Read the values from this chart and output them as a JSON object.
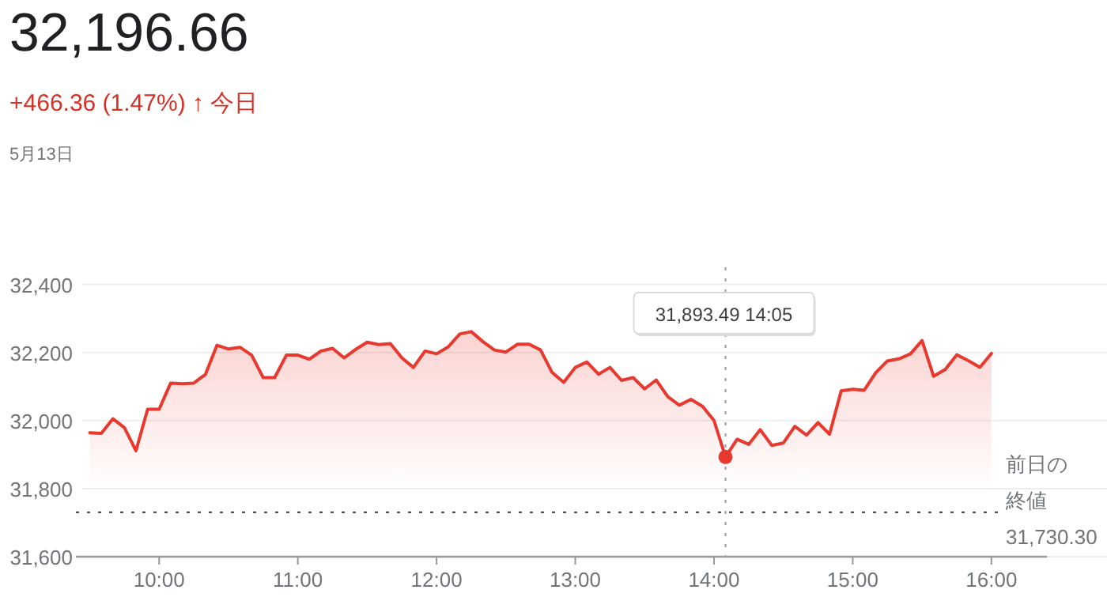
{
  "chart_data": {
    "type": "area",
    "title": "32,196.66",
    "subtitle": "+466.36 (1.47%) ↑ 今日",
    "annotations": [
      "5月13日",
      "31,893.49 14:05"
    ],
    "x": [
      9.5,
      9.583,
      9.667,
      9.75,
      9.833,
      9.917,
      10,
      10.083,
      10.167,
      10.25,
      10.333,
      10.417,
      10.5,
      10.583,
      10.667,
      10.75,
      10.833,
      10.917,
      11,
      11.083,
      11.167,
      11.25,
      11.333,
      11.417,
      11.5,
      11.583,
      11.667,
      11.75,
      11.833,
      11.917,
      12,
      12.083,
      12.167,
      12.25,
      12.333,
      12.417,
      12.5,
      12.583,
      12.667,
      12.75,
      12.833,
      12.917,
      13,
      13.083,
      13.167,
      13.25,
      13.333,
      13.417,
      13.5,
      13.583,
      13.667,
      13.75,
      13.833,
      13.917,
      14,
      14.083,
      14.167,
      14.25,
      14.333,
      14.417,
      14.5,
      14.583,
      14.667,
      14.75,
      14.833,
      14.917,
      15,
      15.083,
      15.167,
      15.25,
      15.333,
      15.417,
      15.5,
      15.583,
      15.667,
      15.75,
      15.833,
      15.917,
      16
    ],
    "series": [
      {
        "color": "#e8392f",
        "values": [
          31964,
          31962,
          32005,
          31979,
          31911,
          32033,
          32033,
          32110,
          32108,
          32110,
          32135,
          32221,
          32210,
          32215,
          32192,
          32126,
          32126,
          32192,
          32192,
          32180,
          32204,
          32212,
          32184,
          32209,
          32230,
          32223,
          32226,
          32184,
          32156,
          32204,
          32196,
          32216,
          32254,
          32261,
          32232,
          32207,
          32201,
          32224,
          32224,
          32207,
          32141,
          32112,
          32156,
          32172,
          32136,
          32156,
          32118,
          32126,
          32093,
          32119,
          32070,
          32045,
          32062,
          32042,
          32000,
          31893,
          31945,
          31930,
          31973,
          31927,
          31934,
          31983,
          31957,
          31994,
          31960,
          32087,
          32092,
          32089,
          32141,
          32175,
          32181,
          32196,
          32235,
          32130,
          32150,
          32193,
          32176,
          32156,
          32197
        ]
      }
    ],
    "xlim": [
      9.4,
      16.4
    ],
    "xticks": [
      {
        "value": 10,
        "label": "10:00"
      },
      {
        "value": 11,
        "label": "11:00"
      },
      {
        "value": 12,
        "label": "12:00"
      },
      {
        "value": 13,
        "label": "13:00"
      },
      {
        "value": 14,
        "label": "14:00"
      },
      {
        "value": 15,
        "label": "15:00"
      },
      {
        "value": 16,
        "label": "16:00"
      }
    ],
    "ylim": [
      31600,
      32450
    ],
    "yticks": [
      {
        "value": 31600,
        "label": "31,600"
      },
      {
        "value": 31800,
        "label": "31,800"
      },
      {
        "value": 32000,
        "label": "32,000"
      },
      {
        "value": 32200,
        "label": "32,200"
      },
      {
        "value": 32400,
        "label": "32,400"
      }
    ],
    "grid": "y",
    "ref_lines": [
      {
        "axis": "y",
        "value": 31730.3,
        "label": "前日の終値 31,730.30",
        "line_style": "dotted",
        "color": "#555555"
      },
      {
        "axis": "x",
        "value": 14.083,
        "line_style": "dotted",
        "color": "#aaaaaa"
      }
    ]
  }
}
